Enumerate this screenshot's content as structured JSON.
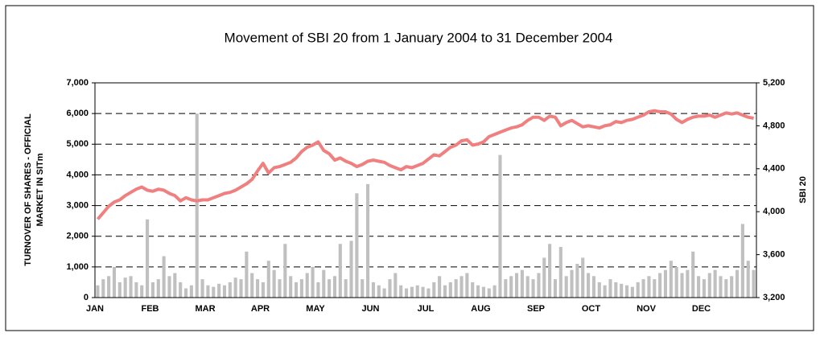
{
  "chart_data": {
    "type": "bar_line",
    "title": "Movement of SBI 20 from 1 January 2004 to 31 December 2004",
    "ylabel": [
      "TURNOVER OF SHARES - OFFICIAL",
      "MARKET IN  SITm"
    ],
    "y2label": "SBI 20",
    "categories": [
      "JAN",
      null,
      null,
      null,
      null,
      null,
      null,
      null,
      null,
      null,
      "FEB",
      null,
      null,
      null,
      null,
      null,
      null,
      null,
      null,
      null,
      "MAR",
      null,
      null,
      null,
      null,
      null,
      null,
      null,
      null,
      null,
      "APR",
      null,
      null,
      null,
      null,
      null,
      null,
      null,
      null,
      null,
      "MAY",
      null,
      null,
      null,
      null,
      null,
      null,
      null,
      null,
      null,
      "JUN",
      null,
      null,
      null,
      null,
      null,
      null,
      null,
      null,
      null,
      "JUL",
      null,
      null,
      null,
      null,
      null,
      null,
      null,
      null,
      null,
      "AUG",
      null,
      null,
      null,
      null,
      null,
      null,
      null,
      null,
      null,
      "SEP",
      null,
      null,
      null,
      null,
      null,
      null,
      null,
      null,
      null,
      "OCT",
      null,
      null,
      null,
      null,
      null,
      null,
      null,
      null,
      null,
      "NOV",
      null,
      null,
      null,
      null,
      null,
      null,
      null,
      null,
      null,
      "DEC",
      null,
      null,
      null,
      null,
      null,
      null,
      null,
      null,
      null
    ],
    "series": [
      {
        "color": "#c0c0c0",
        "values": [
          400,
          600,
          700,
          1000,
          500,
          650,
          700,
          500,
          400,
          2550,
          500,
          600,
          1350,
          700,
          800,
          500,
          300,
          400,
          6000,
          600,
          400,
          350,
          450,
          400,
          500,
          650,
          600,
          1500,
          800,
          600,
          500,
          1200,
          900,
          600,
          1750,
          700,
          500,
          600,
          800,
          1000,
          500,
          900,
          600,
          700,
          1750,
          600,
          1850,
          3400,
          600,
          3700,
          500,
          400,
          300,
          600,
          800,
          400,
          300,
          350,
          400,
          350,
          300,
          500,
          700,
          400,
          500,
          600,
          700,
          800,
          500,
          400,
          350,
          300,
          400,
          4650,
          600,
          700,
          800,
          900,
          700,
          600,
          800,
          1300,
          1750,
          600,
          1650,
          700,
          900,
          1100,
          1300,
          800,
          700,
          500,
          400,
          600,
          500,
          450,
          400,
          350,
          500,
          600,
          700,
          600,
          800,
          900,
          1200,
          1000,
          800,
          900,
          1500,
          700,
          600,
          800,
          900,
          700,
          600,
          700,
          900,
          2400,
          1200,
          900
        ]
      },
      {
        "color": "#f08080",
        "axis": "y2",
        "values": [
          3930,
          3990,
          4050,
          4090,
          4110,
          4150,
          4180,
          4210,
          4230,
          4200,
          4190,
          4210,
          4200,
          4170,
          4150,
          4100,
          4130,
          4110,
          4100,
          4110,
          4110,
          4130,
          4150,
          4170,
          4180,
          4200,
          4230,
          4260,
          4300,
          4380,
          4450,
          4360,
          4410,
          4420,
          4440,
          4460,
          4500,
          4560,
          4600,
          4620,
          4650,
          4570,
          4540,
          4480,
          4500,
          4470,
          4450,
          4420,
          4440,
          4470,
          4480,
          4470,
          4460,
          4430,
          4410,
          4390,
          4420,
          4410,
          4430,
          4450,
          4490,
          4530,
          4520,
          4560,
          4600,
          4620,
          4660,
          4670,
          4620,
          4630,
          4650,
          4700,
          4720,
          4740,
          4760,
          4780,
          4790,
          4810,
          4850,
          4880,
          4880,
          4850,
          4890,
          4880,
          4800,
          4830,
          4850,
          4820,
          4790,
          4800,
          4790,
          4780,
          4800,
          4810,
          4840,
          4830,
          4850,
          4860,
          4880,
          4900,
          4930,
          4940,
          4930,
          4930,
          4910,
          4860,
          4830,
          4860,
          4880,
          4890,
          4890,
          4900,
          4880,
          4900,
          4920,
          4910,
          4920,
          4900,
          4880,
          4870
        ]
      }
    ],
    "ylim": [
      0,
      7000
    ],
    "yticks": [
      0,
      {
        "value": 1000,
        "label": "1,000"
      },
      {
        "value": 2000,
        "label": "2,000"
      },
      {
        "value": 3000,
        "label": "3,000"
      },
      {
        "value": 4000,
        "label": "4,000"
      },
      {
        "value": 5000,
        "label": "5,000"
      },
      {
        "value": 6000,
        "label": "6,000"
      },
      {
        "value": 7000,
        "label": "7,000"
      }
    ],
    "y2lim": [
      3200,
      5200
    ],
    "y2ticks": [
      {
        "value": 3200,
        "label": "3,200"
      },
      {
        "value": 3600,
        "label": "3,600"
      },
      {
        "value": 4000,
        "label": "4,000"
      },
      {
        "value": 4400,
        "label": "4,400"
      },
      {
        "value": 4800,
        "label": "4,800"
      },
      {
        "value": 5200,
        "label": "5,200"
      }
    ],
    "grid": true
  }
}
